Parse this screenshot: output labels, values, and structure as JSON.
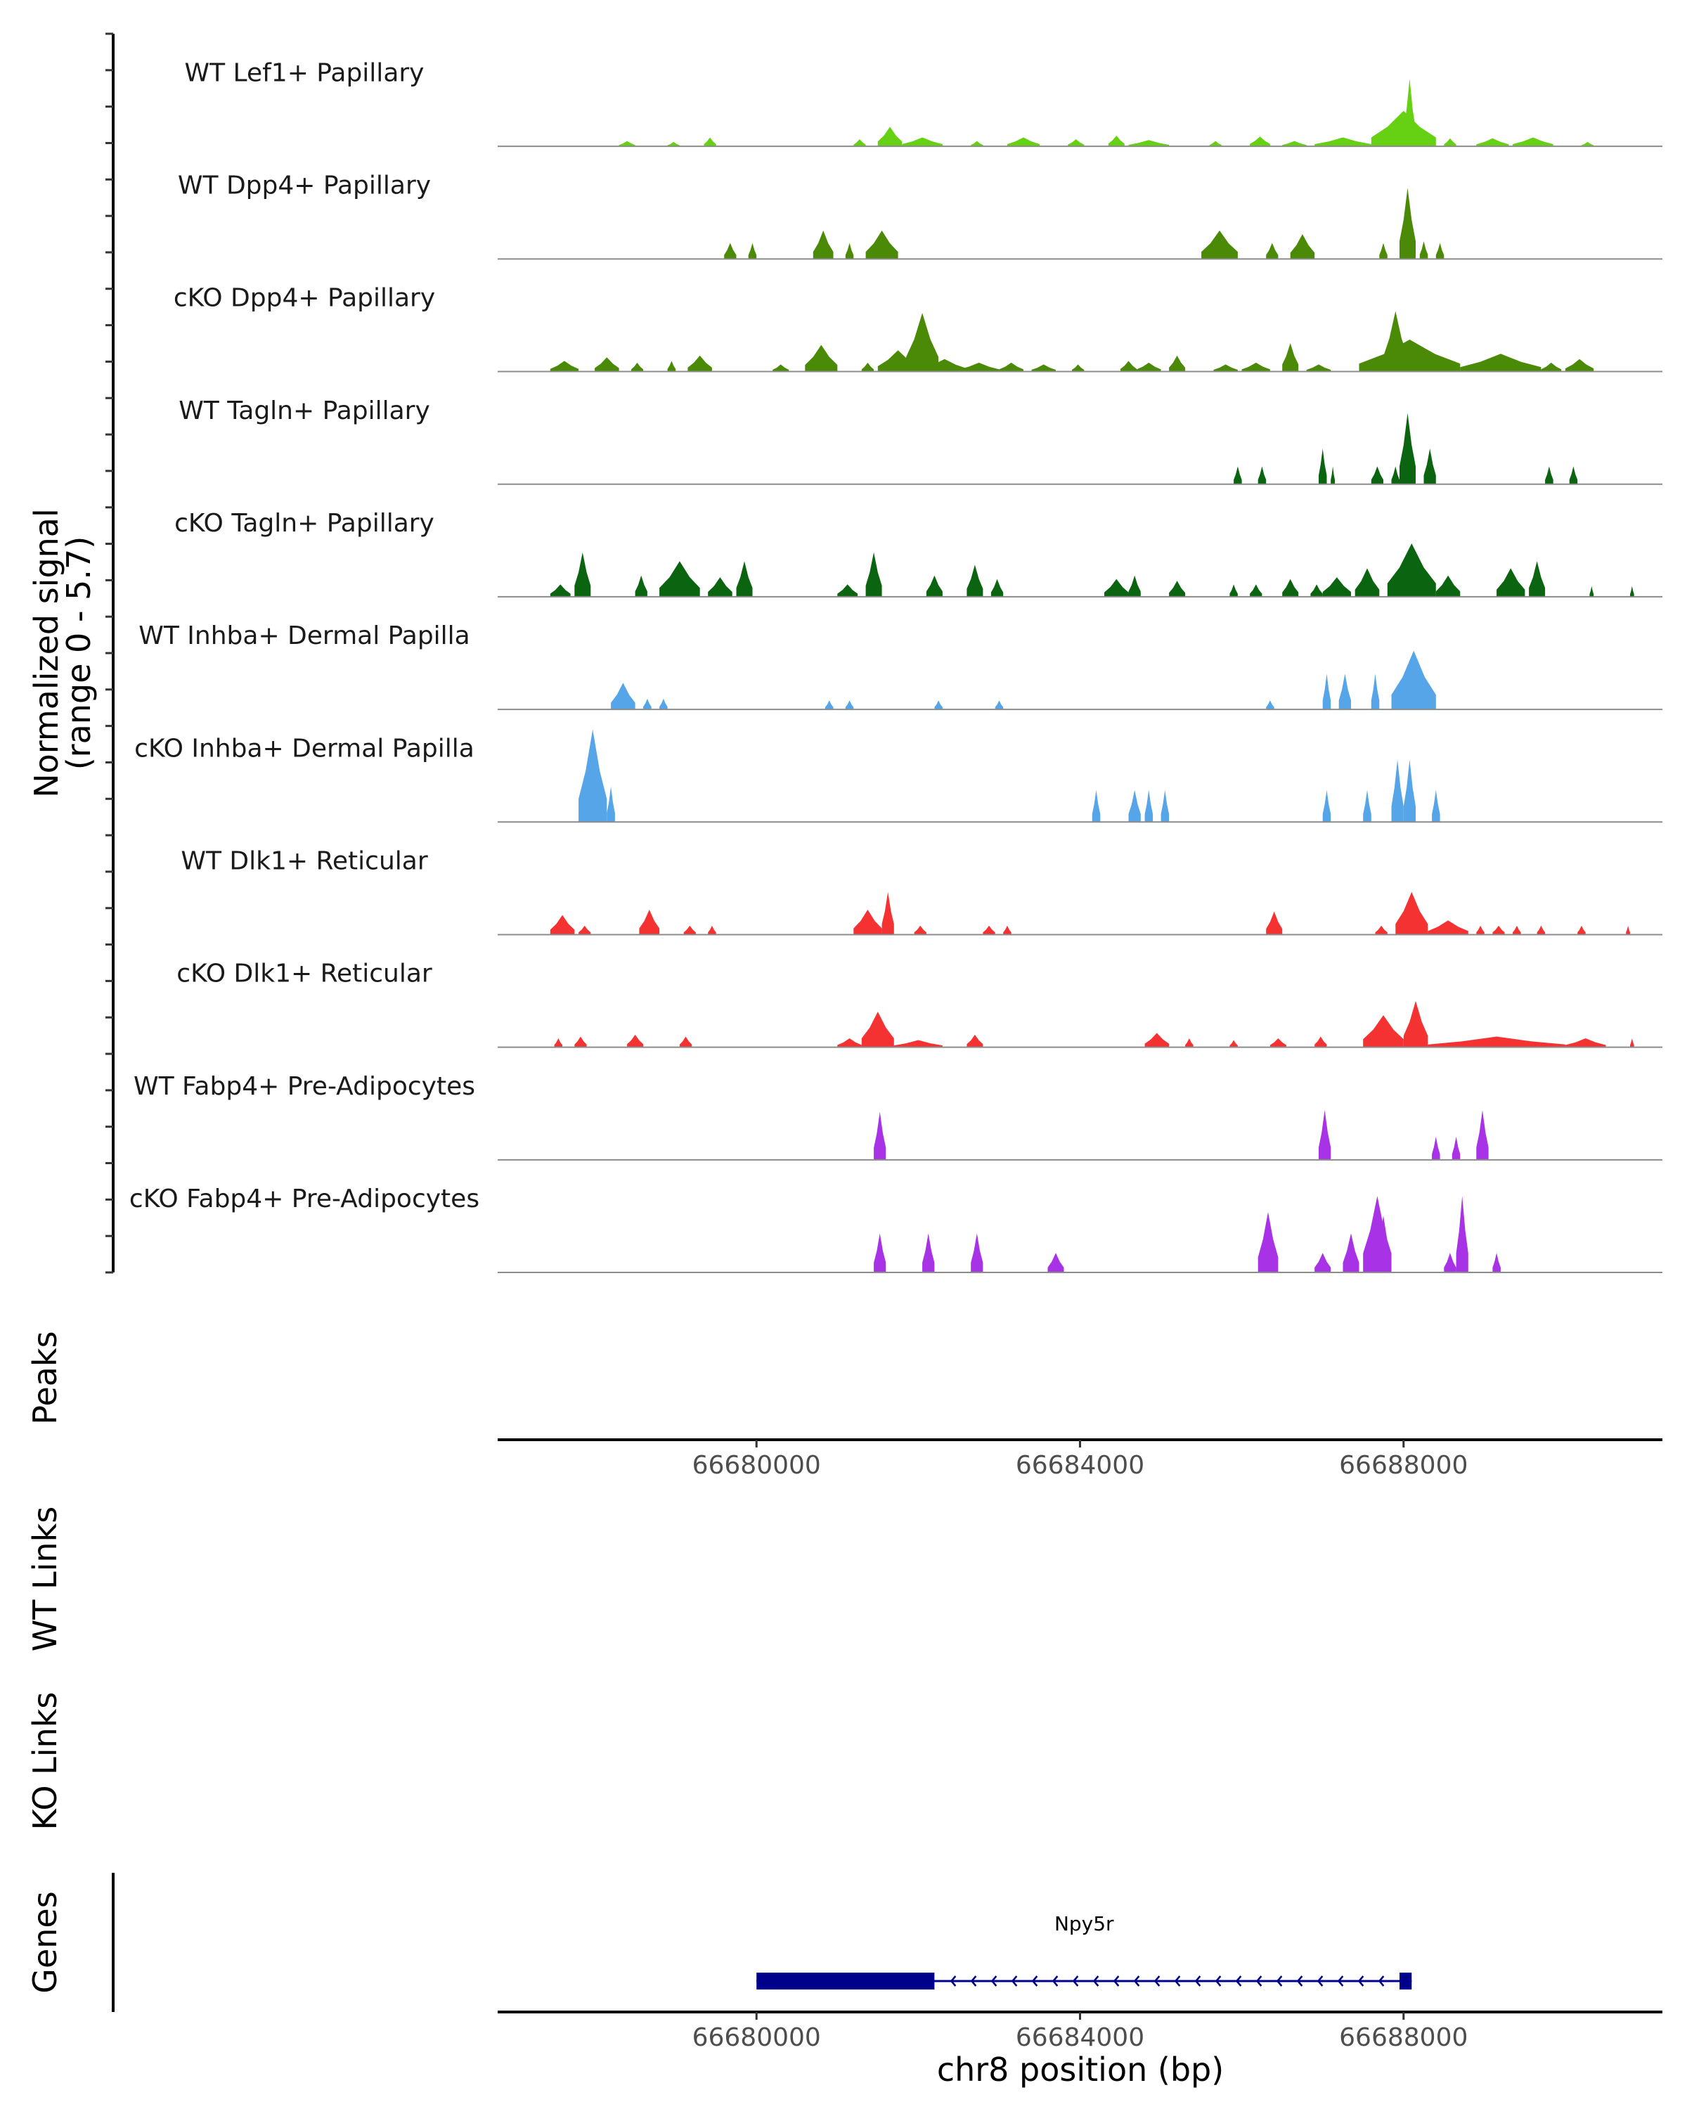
{
  "chart_data": {
    "type": "area",
    "region": "chr8",
    "xlim": [
      66676800,
      66691200
    ],
    "y_axis_label": "Normalized signal",
    "y_axis_range_label": "(range 0 - 5.7)",
    "ylim": [
      0,
      5.7
    ],
    "tracks": [
      {
        "name": "WT Lef1+ Papillary",
        "color": "#66D012",
        "peaks": [
          [
            66678300,
            66678500,
            0.3
          ],
          [
            66678900,
            66679050,
            0.25
          ],
          [
            66679350,
            66679500,
            0.5
          ],
          [
            66681200,
            66681350,
            0.4
          ],
          [
            66681500,
            66681800,
            1.1
          ],
          [
            66681800,
            66682300,
            0.5
          ],
          [
            66682650,
            66682800,
            0.3
          ],
          [
            66683100,
            66683500,
            0.5
          ],
          [
            66683850,
            66684050,
            0.4
          ],
          [
            66684350,
            66684550,
            0.6
          ],
          [
            66684600,
            66685100,
            0.35
          ],
          [
            66685600,
            66685750,
            0.3
          ],
          [
            66686100,
            66686350,
            0.55
          ],
          [
            66686500,
            66686800,
            0.3
          ],
          [
            66686900,
            66687600,
            0.5
          ],
          [
            66687600,
            66688400,
            2.0
          ],
          [
            66688000,
            66688150,
            3.8
          ],
          [
            66688500,
            66688650,
            0.45
          ],
          [
            66688900,
            66689300,
            0.45
          ],
          [
            66689350,
            66689850,
            0.5
          ],
          [
            66690200,
            66690350,
            0.25
          ]
        ]
      },
      {
        "name": "WT Dpp4+ Papillary",
        "color": "#4A8A07",
        "peaks": [
          [
            66679600,
            66679750,
            0.9
          ],
          [
            66679900,
            66680000,
            0.9
          ],
          [
            66680700,
            66680950,
            1.6
          ],
          [
            66681100,
            66681200,
            0.9
          ],
          [
            66681350,
            66681750,
            1.6
          ],
          [
            66685500,
            66685950,
            1.6
          ],
          [
            66686300,
            66686450,
            0.9
          ],
          [
            66686600,
            66686900,
            1.4
          ],
          [
            66687700,
            66687800,
            0.9
          ],
          [
            66687950,
            66688150,
            4.0
          ],
          [
            66688200,
            66688300,
            1.0
          ],
          [
            66688400,
            66688500,
            0.9
          ]
        ]
      },
      {
        "name": "cKO Dpp4+ Papillary",
        "color": "#4A8A07",
        "peaks": [
          [
            66677450,
            66677800,
            0.6
          ],
          [
            66678000,
            66678300,
            0.8
          ],
          [
            66678450,
            66678600,
            0.5
          ],
          [
            66678900,
            66679000,
            0.6
          ],
          [
            66679150,
            66679450,
            0.9
          ],
          [
            66680200,
            66680400,
            0.4
          ],
          [
            66680600,
            66681000,
            1.5
          ],
          [
            66681300,
            66681450,
            0.5
          ],
          [
            66681500,
            66682000,
            1.2
          ],
          [
            66681850,
            66682250,
            3.3
          ],
          [
            66682050,
            66682600,
            0.7
          ],
          [
            66682500,
            66683000,
            0.5
          ],
          [
            66683000,
            66683300,
            0.5
          ],
          [
            66683400,
            66683700,
            0.4
          ],
          [
            66683900,
            66684050,
            0.4
          ],
          [
            66684500,
            66684700,
            0.6
          ],
          [
            66684700,
            66685000,
            0.5
          ],
          [
            66685100,
            66685300,
            0.9
          ],
          [
            66685650,
            66685950,
            0.4
          ],
          [
            66686000,
            66686350,
            0.5
          ],
          [
            66686500,
            66686700,
            1.6
          ],
          [
            66686800,
            66687100,
            0.4
          ],
          [
            66687450,
            66688700,
            1.8
          ],
          [
            66687750,
            66688050,
            3.4
          ],
          [
            66688700,
            66689700,
            1.0
          ],
          [
            66689700,
            66689950,
            0.5
          ],
          [
            66690000,
            66690350,
            0.7
          ]
        ]
      },
      {
        "name": "WT Tagln+ Papillary",
        "color": "#0B6410",
        "peaks": [
          [
            66685900,
            66686000,
            1.0
          ],
          [
            66686200,
            66686300,
            1.0
          ],
          [
            66686950,
            66687050,
            2.0
          ],
          [
            66687100,
            66687150,
            1.0
          ],
          [
            66687600,
            66687750,
            1.0
          ],
          [
            66687850,
            66687950,
            1.0
          ],
          [
            66687950,
            66688150,
            4.0
          ],
          [
            66688250,
            66688400,
            2.0
          ],
          [
            66689750,
            66689850,
            1.0
          ],
          [
            66690050,
            66690150,
            1.0
          ]
        ]
      },
      {
        "name": "cKO Tagln+ Papillary",
        "color": "#0B6410",
        "peaks": [
          [
            66677450,
            66677700,
            0.7
          ],
          [
            66677750,
            66677950,
            2.5
          ],
          [
            66678500,
            66678650,
            1.2
          ],
          [
            66678800,
            66679300,
            2.0
          ],
          [
            66679400,
            66679700,
            1.1
          ],
          [
            66679750,
            66679950,
            2.0
          ],
          [
            66681000,
            66681250,
            0.7
          ],
          [
            66681350,
            66681550,
            2.5
          ],
          [
            66682100,
            66682300,
            1.2
          ],
          [
            66682600,
            66682800,
            1.8
          ],
          [
            66682900,
            66683050,
            1.0
          ],
          [
            66684300,
            66684600,
            1.0
          ],
          [
            66684600,
            66684750,
            1.2
          ],
          [
            66685100,
            66685300,
            0.9
          ],
          [
            66685850,
            66685950,
            0.7
          ],
          [
            66686100,
            66686250,
            0.7
          ],
          [
            66686500,
            66686700,
            1.0
          ],
          [
            66686850,
            66687000,
            0.7
          ],
          [
            66687000,
            66687350,
            1.1
          ],
          [
            66687400,
            66687700,
            1.6
          ],
          [
            66687800,
            66688400,
            3.0
          ],
          [
            66688400,
            66688700,
            1.2
          ],
          [
            66689150,
            66689500,
            1.6
          ],
          [
            66689550,
            66689750,
            2.0
          ],
          [
            66690300,
            66690350,
            0.6
          ],
          [
            66690800,
            66690850,
            0.6
          ]
        ]
      },
      {
        "name": "WT Inhba+ Dermal Papilla",
        "color": "#56A5E8",
        "peaks": [
          [
            66678200,
            66678500,
            1.5
          ],
          [
            66678600,
            66678700,
            0.6
          ],
          [
            66678800,
            66678900,
            0.6
          ],
          [
            66680850,
            66680950,
            0.5
          ],
          [
            66681100,
            66681200,
            0.5
          ],
          [
            66682200,
            66682300,
            0.5
          ],
          [
            66682950,
            66683050,
            0.5
          ],
          [
            66686300,
            66686400,
            0.5
          ],
          [
            66687000,
            66687100,
            2.0
          ],
          [
            66687200,
            66687350,
            2.0
          ],
          [
            66687600,
            66687700,
            2.0
          ],
          [
            66687850,
            66688400,
            3.3
          ]
        ]
      },
      {
        "name": "cKO Inhba+ Dermal Papilla",
        "color": "#56A5E8",
        "peaks": [
          [
            66677800,
            66678150,
            5.2
          ],
          [
            66678150,
            66678250,
            2.0
          ],
          [
            66684150,
            66684250,
            1.8
          ],
          [
            66684600,
            66684750,
            1.8
          ],
          [
            66684800,
            66684900,
            1.8
          ],
          [
            66685000,
            66685100,
            1.8
          ],
          [
            66687000,
            66687100,
            1.8
          ],
          [
            66687500,
            66687600,
            1.8
          ],
          [
            66687850,
            66688000,
            3.5
          ],
          [
            66688000,
            66688150,
            3.5
          ],
          [
            66688350,
            66688450,
            1.8
          ]
        ]
      },
      {
        "name": "WT Dlk1+ Reticular",
        "color": "#F53232",
        "peaks": [
          [
            66677450,
            66677750,
            1.1
          ],
          [
            66677800,
            66677950,
            0.5
          ],
          [
            66678550,
            66678800,
            1.4
          ],
          [
            66679100,
            66679250,
            0.5
          ],
          [
            66679400,
            66679500,
            0.5
          ],
          [
            66681200,
            66681550,
            1.4
          ],
          [
            66681550,
            66681700,
            2.4
          ],
          [
            66681950,
            66682100,
            0.5
          ],
          [
            66682800,
            66682950,
            0.5
          ],
          [
            66683050,
            66683150,
            0.5
          ],
          [
            66686300,
            66686500,
            1.3
          ],
          [
            66687650,
            66687800,
            0.5
          ],
          [
            66687900,
            66688300,
            2.4
          ],
          [
            66688300,
            66688800,
            0.8
          ],
          [
            66688900,
            66689000,
            0.5
          ],
          [
            66689100,
            66689250,
            0.5
          ],
          [
            66689350,
            66689450,
            0.5
          ],
          [
            66689650,
            66689750,
            0.5
          ],
          [
            66690150,
            66690250,
            0.5
          ],
          [
            66690750,
            66690800,
            0.5
          ]
        ]
      },
      {
        "name": "cKO Dlk1+ Reticular",
        "color": "#F53232",
        "peaks": [
          [
            66677500,
            66677600,
            0.5
          ],
          [
            66677750,
            66677900,
            0.6
          ],
          [
            66678400,
            66678600,
            0.7
          ],
          [
            66679050,
            66679200,
            0.6
          ],
          [
            66681000,
            66681300,
            0.5
          ],
          [
            66681300,
            66681700,
            2.0
          ],
          [
            66681700,
            66682300,
            0.4
          ],
          [
            66682600,
            66682800,
            0.7
          ],
          [
            66684800,
            66685100,
            0.8
          ],
          [
            66685300,
            66685400,
            0.5
          ],
          [
            66685850,
            66685950,
            0.4
          ],
          [
            66686350,
            66686550,
            0.5
          ],
          [
            66686900,
            66687050,
            0.6
          ],
          [
            66687500,
            66688000,
            1.8
          ],
          [
            66688000,
            66688300,
            2.6
          ],
          [
            66688300,
            66690000,
            0.6
          ],
          [
            66690000,
            66690500,
            0.5
          ],
          [
            66690800,
            66690850,
            0.5
          ]
        ]
      },
      {
        "name": "WT Fabp4+ Pre-Adipocytes",
        "color": "#A832E6",
        "peaks": [
          [
            66681450,
            66681600,
            2.7
          ],
          [
            66686950,
            66687100,
            2.8
          ],
          [
            66688350,
            66688450,
            1.3
          ],
          [
            66688600,
            66688700,
            1.3
          ],
          [
            66688900,
            66689050,
            2.8
          ]
        ]
      },
      {
        "name": "cKO Fabp4+ Pre-Adipocytes",
        "color": "#A832E6",
        "peaks": [
          [
            66681450,
            66681600,
            2.2
          ],
          [
            66682050,
            66682200,
            2.2
          ],
          [
            66682650,
            66682800,
            2.2
          ],
          [
            66683600,
            66683800,
            1.1
          ],
          [
            66686200,
            66686450,
            3.4
          ],
          [
            66686900,
            66687100,
            1.1
          ],
          [
            66687250,
            66687450,
            2.2
          ],
          [
            66687500,
            66687850,
            4.3
          ],
          [
            66687650,
            66687850,
            3.2
          ],
          [
            66688500,
            66688650,
            1.1
          ],
          [
            66688650,
            66688800,
            4.3
          ],
          [
            66689100,
            66689200,
            1.1
          ]
        ]
      }
    ],
    "peaks_panel_label": "Peaks",
    "x_ticks": [
      66680000,
      66684000,
      66688000
    ],
    "x_tick_labels": [
      "66680000",
      "66684000",
      "66688000"
    ],
    "wt_links_label": "WT Links",
    "ko_links_label": "KO Links",
    "genes_panel_label": "Genes",
    "genes": [
      {
        "name": "Npy5r",
        "strand": "-",
        "start": 66680000,
        "end": 66688100,
        "thick_start": 66680000,
        "thick_end": 66682200,
        "last_exon_start": 66687950,
        "color": "#00008B"
      }
    ],
    "xlabel": "chr8 position (bp)"
  }
}
